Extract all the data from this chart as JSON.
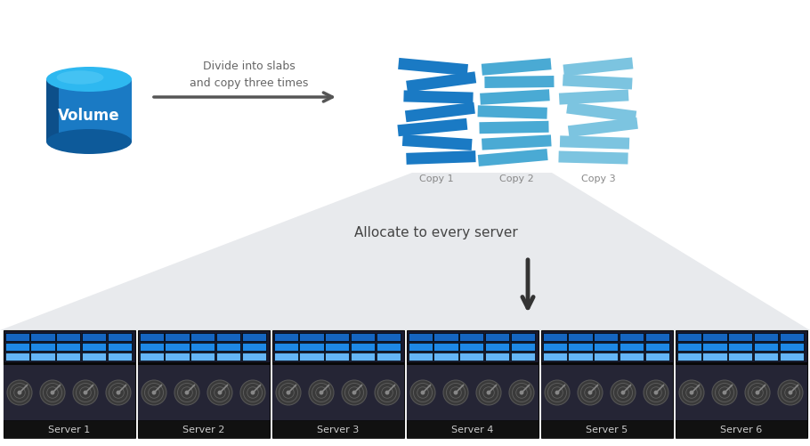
{
  "background_color": "#ffffff",
  "title_text": "Divide into slabs\nand copy three times",
  "title_color": "#666666",
  "title_fontsize": 9,
  "allocate_text": "Allocate to every server",
  "allocate_color": "#444444",
  "allocate_fontsize": 11,
  "copy_labels": [
    "Copy 1",
    "Copy 2",
    "Copy 3"
  ],
  "copy_label_color": "#888888",
  "copy_label_fontsize": 8,
  "server_labels": [
    "Server 1",
    "Server 2",
    "Server 3",
    "Server 4",
    "Server 5",
    "Server 6"
  ],
  "server_label_fontsize": 8,
  "server_label_color": "#cccccc",
  "slab_color_copy1": "#1a7ac4",
  "slab_color_copy2": "#4aaad4",
  "slab_color_copy3": "#7cc4e0",
  "tile_row1": "#1565c0",
  "tile_row2": "#1e88e5",
  "tile_row3": "#64b5f6",
  "server_bg_color": "#1a1a2e",
  "server_label_bg": "#111111",
  "disk_bg_color": "#252535",
  "num_servers": 6,
  "cone_fill": "#e8eaed",
  "cone_edge": "#cccccc",
  "cylinder_color": "#1a7ac4",
  "cylinder_top": "#2eb8f0",
  "cylinder_bottom": "#0d5a9a",
  "cylinder_highlight": "#60d0f8"
}
